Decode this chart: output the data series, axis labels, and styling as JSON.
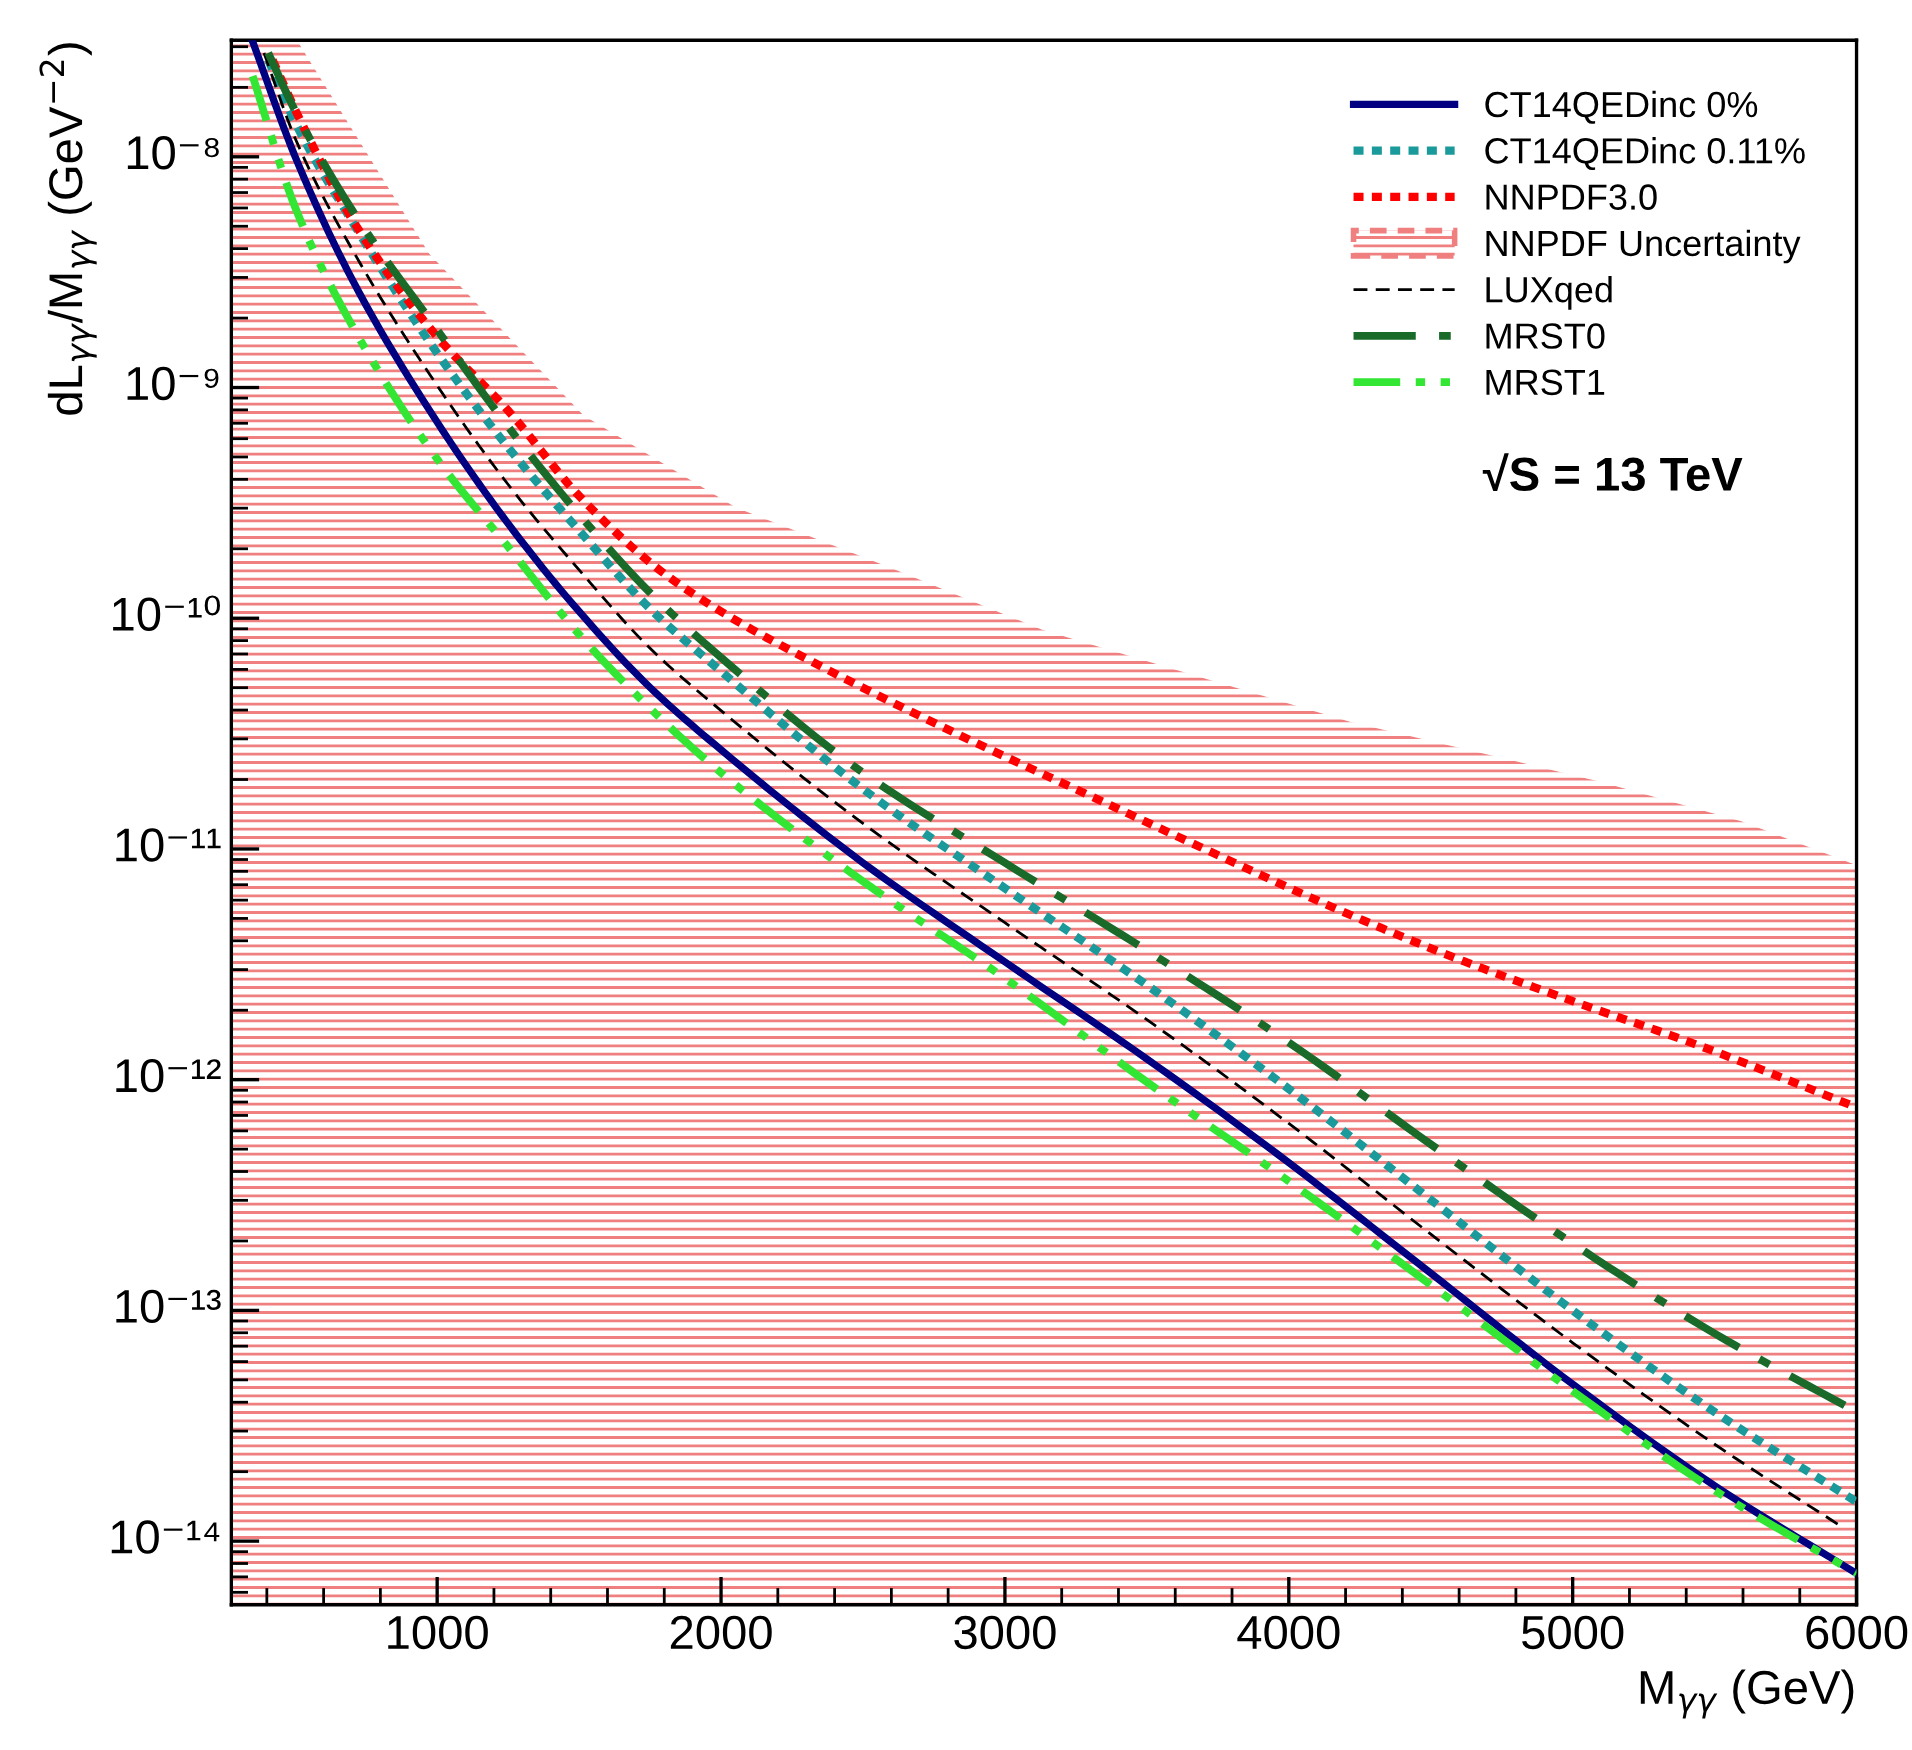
{
  "chart_data": {
    "type": "line",
    "xlabel": "M$_{γγ}$ (GeV)",
    "ylabel": "dL$_{γγ}$/M$_{γγ}$ (GeV$^{−2}$)",
    "annotations": [
      "√S = 13 TeV"
    ],
    "log": true,
    "xlim": [
      275,
      6000
    ],
    "xticks": [
      1000,
      2000,
      3000,
      4000,
      5000,
      6000
    ],
    "ylim": [
      5.3e-15,
      3.2e-08
    ],
    "yticks": [
      {
        "value": 1e-14,
        "label": "10⁻¹⁴"
      },
      {
        "value": 1e-13,
        "label": "10⁻¹³"
      },
      {
        "value": 1e-12,
        "label": "10⁻¹²"
      },
      {
        "value": 1e-11,
        "label": "10⁻¹¹"
      },
      {
        "value": 1e-10,
        "label": "10⁻¹⁰"
      },
      {
        "value": 1e-09,
        "label": "10⁻⁹"
      },
      {
        "value": 1e-08,
        "label": "10⁻⁸"
      }
    ],
    "grid": false,
    "legend": "top right",
    "series": [
      {
        "name": "CT14QEDinc 0%",
        "color": "#000080",
        "line_style": "solid",
        "x": [
          350,
          500,
          700,
          1000,
          1250,
          1500,
          1750,
          2000,
          2500,
          3000,
          3500,
          4000,
          4500,
          5000,
          5500,
          6000
        ],
        "values": [
          3.16e-08,
          1e-08,
          2.95e-09,
          7.08e-10,
          2.57e-10,
          1.07e-10,
          5.01e-11,
          2.69e-11,
          8.71e-12,
          3.24e-12,
          1.23e-12,
          4.37e-13,
          1.45e-13,
          4.79e-14,
          1.74e-14,
          7.24e-15
        ]
      },
      {
        "name": "CT14QEDinc 0.11%",
        "color": "#1a9a9a",
        "line_style": "dotted",
        "x": [
          405,
          500,
          700,
          1000,
          1250,
          1500,
          1750,
          2000,
          2500,
          3000,
          3500,
          4000,
          4500,
          5000,
          5500,
          6000
        ],
        "values": [
          2.63e-08,
          1.41e-08,
          5.25e-09,
          1.41e-09,
          5.5e-10,
          2.4e-10,
          1.1e-10,
          5.89e-11,
          1.82e-11,
          6.76e-12,
          2.57e-12,
          9.12e-13,
          3.02e-13,
          1e-13,
          3.63e-14,
          1.48e-14
        ]
      },
      {
        "name": "NNPDF3.0",
        "color": "#ff0000",
        "line_style": "dotted",
        "x": [
          420,
          513,
          700,
          1000,
          1250,
          1500,
          1783,
          2000,
          2323,
          2863,
          3300,
          3721,
          4150,
          4581,
          5000,
          5442,
          6000
        ],
        "values": [
          2.63e-08,
          1.48e-08,
          5.37e-09,
          1.66e-09,
          7.94e-10,
          3.39e-10,
          1.62e-10,
          1.07e-10,
          6.46e-11,
          3.02e-11,
          1.7e-11,
          9.77e-12,
          5.62e-12,
          3.39e-12,
          2.19e-12,
          1.41e-12,
          7.59e-13
        ]
      },
      {
        "name": "NNPDF Uncertainty",
        "type": "area",
        "color": "#f08080",
        "x": [
          275,
          513,
          972,
          1515,
          2052,
          2595,
          3131,
          3675,
          4218,
          4800,
          5100,
          5594,
          6000
        ],
        "values": [
          3.1e-08,
          3.1e-08,
          3.8e-09,
          7.59e-10,
          3.02e-10,
          1.66e-10,
          8.91e-11,
          5.62e-11,
          3.55e-11,
          2.4e-11,
          1.95e-11,
          1.32e-11,
          8.51e-12
        ]
      },
      {
        "name": "LUXqed",
        "color": "#000000",
        "line_style": "dashed",
        "x": [
          390,
          500,
          700,
          1000,
          1250,
          1500,
          1750,
          2000,
          2500,
          3000,
          3500,
          4000,
          4500,
          5000,
          5500,
          5950
        ],
        "values": [
          2.82e-08,
          1.2e-08,
          3.98e-09,
          1.02e-09,
          3.8e-10,
          1.62e-10,
          7.41e-11,
          3.98e-11,
          1.29e-11,
          4.79e-12,
          1.82e-12,
          6.46e-13,
          2.14e-13,
          7.24e-14,
          2.63e-14,
          1.15e-14
        ]
      },
      {
        "name": "MRST0",
        "color": "#1a6b2a",
        "line_style": "dashdot",
        "x": [
          405,
          500,
          700,
          1000,
          1250,
          1500,
          1750,
          2000,
          2500,
          3000,
          3500,
          4000,
          4500,
          5000,
          5500,
          6000
        ],
        "values": [
          2.82e-08,
          1.58e-08,
          5.89e-09,
          1.78e-09,
          6.76e-10,
          2.82e-10,
          1.29e-10,
          6.76e-11,
          2.14e-11,
          8.71e-12,
          3.63e-12,
          1.45e-12,
          5.25e-13,
          1.95e-13,
          7.94e-14,
          3.63e-14
        ]
      },
      {
        "name": "MRST1",
        "color": "#33e633",
        "line_style": "dashdotdot",
        "x": [
          350,
          500,
          700,
          1000,
          1250,
          1500,
          1750,
          2000,
          2500,
          3000,
          3500,
          4000,
          4500,
          5000,
          5500,
          6000
        ],
        "values": [
          2.24e-08,
          6.03e-09,
          1.86e-09,
          4.9e-10,
          2.04e-10,
          8.51e-11,
          4.07e-11,
          2.14e-11,
          7.24e-12,
          2.75e-12,
          9.77e-13,
          3.63e-13,
          1.29e-13,
          4.47e-14,
          1.66e-14,
          7.24e-15
        ]
      }
    ]
  }
}
